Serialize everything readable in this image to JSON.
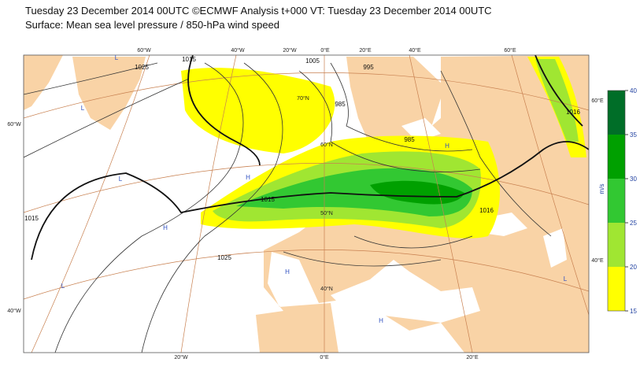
{
  "header": {
    "title": "Tuesday 23 December 2014 00UTC ©ECMWF Analysis t+000 VT: Tuesday 23 December 2014 00UTC",
    "subtitle": "Surface: Mean sea level pressure / 850-hPa wind speed"
  },
  "colorbar": {
    "unit": "m/s",
    "ticks": [
      15,
      20,
      25,
      30,
      35,
      40
    ],
    "colors": [
      "#ffff00",
      "#a0e632",
      "#32c832",
      "#00a000",
      "#006e28"
    ]
  },
  "map": {
    "top_labels": [
      "60°W",
      "40°W",
      "20°W",
      "0°E",
      "20°E",
      "40°E",
      "60°E"
    ],
    "bottom_labels": [
      "20°W",
      "0°E",
      "20°E"
    ],
    "left_labels": [
      "60°W",
      "40°W"
    ],
    "right_labels": [
      "60°E",
      "40°E"
    ],
    "lat_labels": [
      "70°N",
      "60°N",
      "50°N",
      "40°N"
    ],
    "isobar_labels": [
      "1025",
      "1015",
      "1005",
      "995",
      "985",
      "985",
      "1015",
      "1016",
      "1016",
      "1025",
      "1015"
    ],
    "centres": [
      "L",
      "L",
      "L",
      "H",
      "H",
      "H",
      "L",
      "H",
      "H",
      "L"
    ]
  }
}
